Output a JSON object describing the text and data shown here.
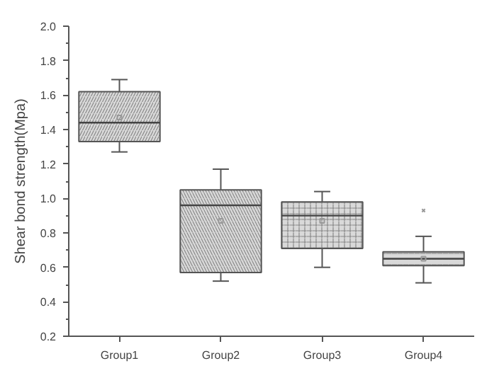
{
  "chart_data": {
    "type": "box",
    "ylabel": "Shear bond strength(Mpa)",
    "categories": [
      "Group1",
      "Group2",
      "Group3",
      "Group4"
    ],
    "boxes": [
      {
        "low": 1.27,
        "q1": 1.33,
        "median": 1.44,
        "q3": 1.62,
        "high": 1.69,
        "mean": 1.47
      },
      {
        "low": 0.52,
        "q1": 0.57,
        "median": 0.96,
        "q3": 1.05,
        "high": 1.17,
        "mean": 0.87
      },
      {
        "low": 0.6,
        "q1": 0.71,
        "median": 0.9,
        "q3": 0.98,
        "high": 1.04,
        "mean": 0.87
      },
      {
        "low": 0.51,
        "q1": 0.61,
        "median": 0.65,
        "q3": 0.69,
        "high": 0.78,
        "mean": 0.65,
        "outliers": [
          0.93
        ]
      }
    ],
    "color": "#d9d9d9",
    "ylim": [
      0.2,
      2.0
    ],
    "yticks": [
      0.2,
      0.4,
      0.6,
      0.8,
      {
        "value": 1,
        "label": "1.0"
      },
      1.2,
      1.4,
      1.6,
      1.8,
      {
        "value": 2,
        "label": "2.0"
      }
    ],
    "grid": false
  }
}
